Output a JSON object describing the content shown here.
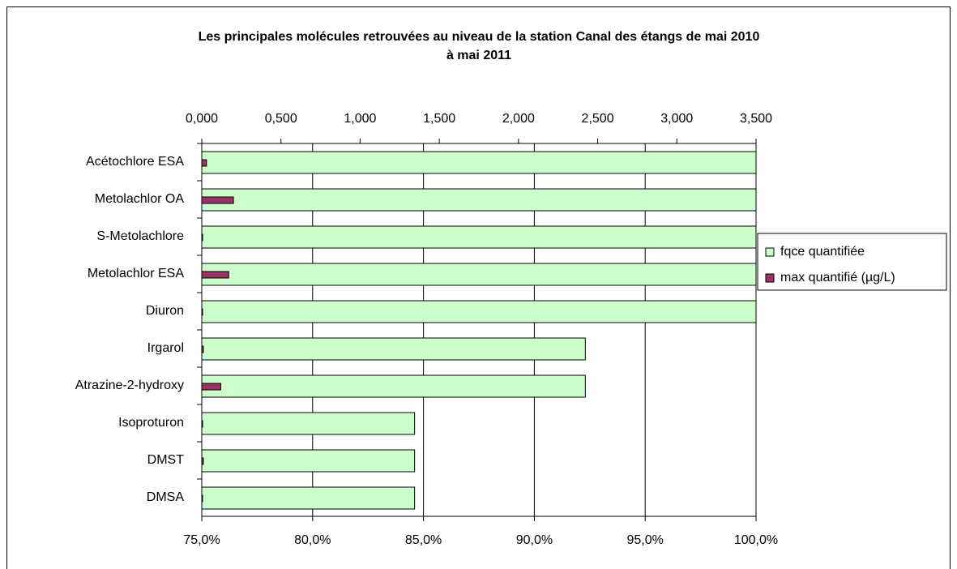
{
  "chart_data": {
    "type": "bar",
    "orientation": "horizontal",
    "title": [
      "Les principales molécules retrouvées au niveau de la station Canal des étangs de mai 2010",
      "à mai 2011"
    ],
    "categories": [
      "Acétochlore ESA",
      "Metolachlor OA",
      "S-Metolachlore",
      "Metolachlor ESA",
      "Diuron",
      "Irgarol",
      "Atrazine-2-hydroxy",
      "Isoproturon",
      "DMST",
      "DMSA"
    ],
    "series": [
      {
        "name": "fqce quantifiée",
        "color": "#ccffcc",
        "axis": "x",
        "values": [
          100,
          100,
          100,
          100,
          100,
          92.3,
          92.3,
          84.6,
          84.6,
          84.6
        ]
      },
      {
        "name": "max quantifié (µg/L)",
        "color": "#993366",
        "axis": "x2",
        "values": [
          0.03,
          0.2,
          0.005,
          0.17,
          0.002,
          0.01,
          0.12,
          0.002,
          0.01,
          0.002
        ]
      }
    ],
    "xlim": [
      75,
      100
    ],
    "xticks": [
      {
        "value": 75,
        "label": "75,0%"
      },
      {
        "value": 80,
        "label": "80,0%"
      },
      {
        "value": 85,
        "label": "85,0%"
      },
      {
        "value": 90,
        "label": "90,0%"
      },
      {
        "value": 95,
        "label": "95,0%"
      },
      {
        "value": 100,
        "label": "100,0%"
      }
    ],
    "x2lim": [
      0,
      3.5
    ],
    "x2ticks": [
      {
        "value": 0,
        "label": "0,000"
      },
      {
        "value": 0.5,
        "label": "0,500"
      },
      {
        "value": 1,
        "label": "1,000"
      },
      {
        "value": 1.5,
        "label": "1,500"
      },
      {
        "value": 2,
        "label": "2,000"
      },
      {
        "value": 2.5,
        "label": "2,500"
      },
      {
        "value": 3,
        "label": "3,000"
      },
      {
        "value": 3.5,
        "label": "3,500"
      }
    ],
    "grid": true,
    "legend": "right"
  }
}
